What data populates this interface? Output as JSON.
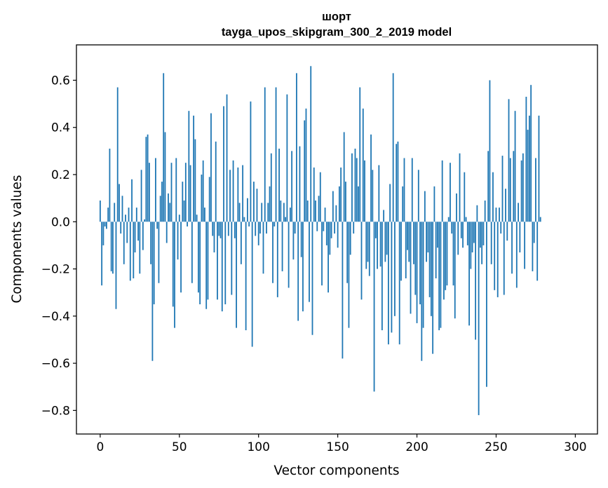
{
  "chart_data": {
    "type": "bar",
    "title": "шорт",
    "subtitle": "tayga_upos_skipgram_300_2_2019 model",
    "xlabel": "Vector components",
    "ylabel": "Components values",
    "xlim": [
      -15,
      314
    ],
    "ylim": [
      -0.9,
      0.75
    ],
    "xticks": [
      0,
      50,
      100,
      150,
      200,
      250,
      300
    ],
    "xtick_labels": [
      "0",
      "50",
      "100",
      "150",
      "200",
      "250",
      "300"
    ],
    "yticks": [
      -0.8,
      -0.6,
      -0.4,
      -0.2,
      0.0,
      0.2,
      0.4,
      0.6
    ],
    "ytick_labels": [
      "−0.8",
      "−0.6",
      "−0.4",
      "−0.2",
      "0.0",
      "0.2",
      "0.4",
      "0.6"
    ],
    "bar_color": "#1f77b4",
    "grid": false,
    "values": [
      0.09,
      -0.27,
      -0.1,
      -0.02,
      -0.03,
      0.06,
      0.31,
      -0.21,
      -0.22,
      0.08,
      -0.37,
      0.57,
      0.16,
      -0.05,
      0.11,
      -0.18,
      0.03,
      -0.09,
      0.06,
      -0.25,
      0.18,
      -0.24,
      -0.13,
      0.06,
      -0.08,
      -0.22,
      0.22,
      -0.12,
      0.01,
      0.36,
      0.37,
      0.25,
      -0.18,
      -0.59,
      -0.35,
      0.27,
      -0.03,
      -0.26,
      0.11,
      0.17,
      0.63,
      0.38,
      -0.09,
      0.12,
      0.08,
      0.25,
      -0.36,
      -0.45,
      0.27,
      -0.16,
      0.03,
      -0.3,
      0.17,
      0.09,
      0.25,
      -0.02,
      0.47,
      0.24,
      -0.26,
      0.45,
      0.35,
      0.03,
      -0.3,
      -0.35,
      0.2,
      0.26,
      0.06,
      -0.37,
      -0.33,
      0.19,
      0.46,
      -0.06,
      -0.13,
      0.34,
      -0.33,
      -0.06,
      -0.07,
      -0.38,
      0.49,
      -0.35,
      0.54,
      -0.06,
      0.22,
      -0.31,
      0.26,
      -0.07,
      -0.45,
      0.23,
      0.08,
      -0.18,
      0.24,
      0.02,
      -0.46,
      0.1,
      -0.02,
      0.51,
      -0.53,
      0.17,
      -0.06,
      0.14,
      -0.1,
      -0.05,
      0.08,
      -0.22,
      0.57,
      -0.05,
      0.08,
      0.15,
      0.29,
      -0.26,
      -0.02,
      0.57,
      -0.32,
      0.31,
      0.09,
      -0.21,
      0.08,
      0.02,
      0.54,
      -0.28,
      0.06,
      0.3,
      -0.16,
      -0.05,
      0.63,
      -0.42,
      0.32,
      -0.15,
      -0.38,
      0.43,
      0.48,
      0.09,
      -0.34,
      0.66,
      -0.48,
      0.23,
      0.09,
      -0.04,
      0.11,
      0.21,
      -0.27,
      -0.04,
      0.06,
      -0.1,
      -0.3,
      -0.14,
      -0.07,
      0.13,
      -0.05,
      0.07,
      -0.11,
      0.15,
      0.23,
      -0.58,
      0.38,
      0.17,
      -0.26,
      -0.45,
      -0.14,
      0.29,
      -0.05,
      0.31,
      0.27,
      0.15,
      0.57,
      -0.33,
      0.48,
      0.26,
      -0.2,
      -0.17,
      -0.23,
      0.37,
      0.22,
      -0.72,
      -0.07,
      -0.2,
      0.24,
      -0.19,
      -0.46,
      0.05,
      -0.17,
      -0.14,
      -0.52,
      0.16,
      -0.47,
      0.63,
      -0.4,
      0.33,
      0.34,
      -0.52,
      -0.25,
      0.15,
      0.27,
      -0.24,
      -0.12,
      -0.17,
      -0.39,
      0.27,
      -0.18,
      -0.31,
      -0.43,
      0.22,
      -0.35,
      -0.59,
      -0.45,
      0.13,
      -0.17,
      -0.13,
      -0.32,
      -0.4,
      -0.56,
      0.15,
      -0.24,
      -0.11,
      -0.46,
      -0.45,
      0.26,
      -0.33,
      -0.29,
      -0.27,
      0.02,
      0.25,
      -0.05,
      -0.27,
      -0.41,
      0.12,
      -0.14,
      0.29,
      -0.07,
      -0.11,
      0.21,
      0.02,
      -0.1,
      -0.44,
      -0.2,
      -0.13,
      -0.09,
      -0.5,
      0.07,
      -0.82,
      -0.11,
      -0.18,
      -0.1,
      0.09,
      -0.7,
      0.3,
      0.6,
      -0.18,
      0.21,
      -0.29,
      0.06,
      -0.32,
      0.06,
      -0.05,
      0.28,
      -0.31,
      0.14,
      -0.08,
      0.52,
      0.27,
      -0.22,
      0.3,
      0.47,
      -0.28,
      0.08,
      -0.13,
      0.26,
      0.29,
      -0.2,
      0.53,
      0.39,
      0.45,
      0.58,
      -0.21,
      -0.09,
      0.27,
      -0.25,
      0.45,
      0.02
    ]
  }
}
